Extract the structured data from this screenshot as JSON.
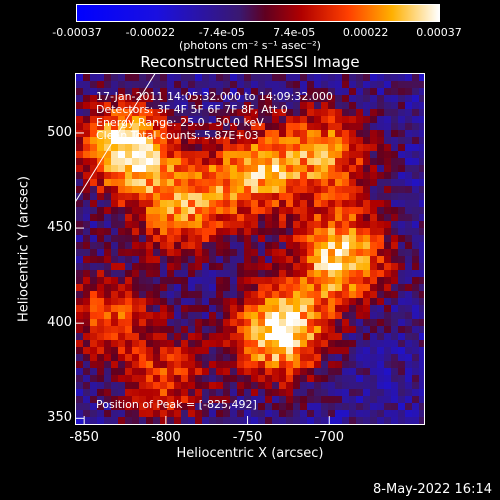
{
  "chart_data": {
    "type": "heatmap",
    "title": "Reconstructed RHESSI Image",
    "xlabel": "Heliocentric X (arcsec)",
    "ylabel": "Heliocentric Y (arcsec)",
    "xlim": [
      -855,
      -642
    ],
    "ylim": [
      347,
      531
    ],
    "x_ticks": [
      "-850",
      "-800",
      "-750",
      "-700"
    ],
    "y_ticks": [
      "500",
      "450",
      "400",
      "350"
    ],
    "x_tick_values": [
      -850,
      -800,
      -750,
      -700
    ],
    "y_tick_values": [
      500,
      450,
      400,
      350
    ],
    "colorbar": {
      "ticks": [
        "-0.00037",
        "-0.00022",
        "-7.4e-05",
        "7.4e-05",
        "0.00022",
        "0.00037"
      ],
      "tick_values": [
        -0.00037,
        -0.00022,
        -7.4e-05,
        7.4e-05,
        0.00022,
        0.00037
      ],
      "range": [
        -0.00037,
        0.00037
      ],
      "unit_label": "(photons cm⁻² s⁻¹ asec⁻²)"
    },
    "annotations": {
      "time_range": "17-Jan-2011 14:05:32.000 to 14:09:32.000",
      "detectors": "Detectors: 3F 4F 5F 6F 7F 8F, Att 0",
      "energy_range": "Energy Range: 25.0 - 50.0 keV",
      "clean_counts": "Clean     Total counts: 5.87E+03",
      "peak": "Position of Peak = [-825,492]"
    },
    "peak_position": [
      -825,
      492
    ],
    "sources": [
      {
        "x": -730,
        "y": 395,
        "intensity": 1.0
      },
      {
        "x": -825,
        "y": 492,
        "intensity": 0.95
      },
      {
        "x": -692,
        "y": 435,
        "intensity": 0.9
      },
      {
        "x": -745,
        "y": 480,
        "intensity": 0.75
      },
      {
        "x": -790,
        "y": 460,
        "intensity": 0.7
      },
      {
        "x": -700,
        "y": 490,
        "intensity": 0.65
      },
      {
        "x": -835,
        "y": 405,
        "intensity": 0.55
      },
      {
        "x": -800,
        "y": 370,
        "intensity": 0.5
      }
    ]
  },
  "footer": {
    "datestamp": "8-May-2022 16:14"
  }
}
